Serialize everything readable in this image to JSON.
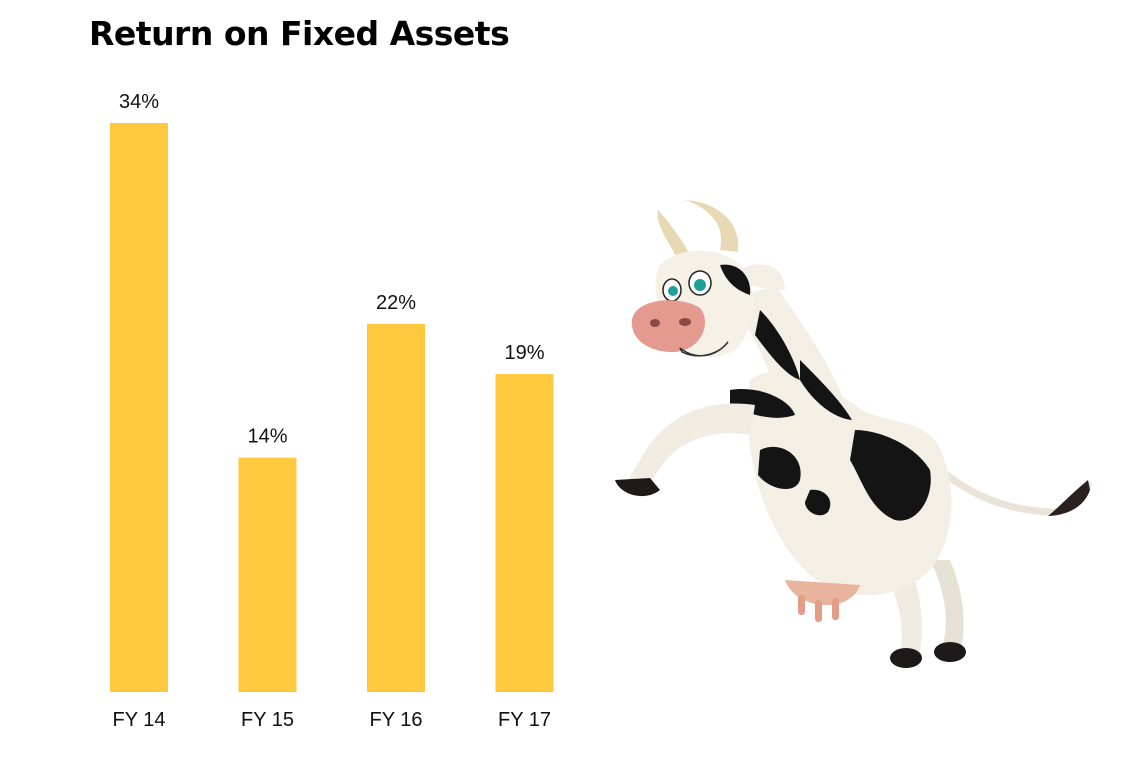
{
  "chart_data": {
    "type": "bar",
    "title": "Return on Fixed Assets",
    "categories": [
      "FY 14",
      "FY 15",
      "FY 16",
      "FY 17"
    ],
    "values": [
      34,
      14,
      22,
      19
    ],
    "value_labels": [
      "34%",
      "14%",
      "22%",
      "19%"
    ],
    "unit": "%",
    "xlabel": "",
    "ylabel": "",
    "ylim": [
      0,
      34
    ],
    "grid": false,
    "legend": "none",
    "bar_color": "#FFC93F"
  },
  "illustration": {
    "icon": "cartoon-cow-icon"
  },
  "colors": {
    "background": "#FFFFFF",
    "cow_body": "#F2EEE3",
    "cow_spots": "#141414",
    "cow_nose": "#E49A8E",
    "horn": "#E8D9B5"
  }
}
